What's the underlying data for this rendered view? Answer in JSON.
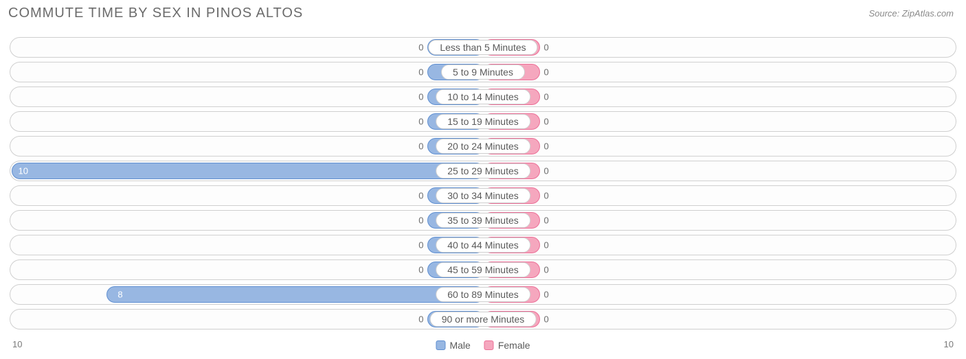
{
  "title": "COMMUTE TIME BY SEX IN PINOS ALTOS",
  "source": "Source: ZipAtlas.com",
  "chart": {
    "type": "diverging-bar",
    "max_value": 10,
    "min_bar_pct": 12,
    "colors": {
      "male_fill": "#98b7e2",
      "male_border": "#5f8fd1",
      "female_fill": "#f5a7be",
      "female_border": "#ec6f97",
      "row_border": "#cfcfcf",
      "row_bg": "#fdfdfd",
      "text": "#6b6b6b",
      "background": "#ffffff"
    },
    "axis_left_label": "10",
    "axis_right_label": "10",
    "legend": [
      {
        "key": "male",
        "label": "Male"
      },
      {
        "key": "female",
        "label": "Female"
      }
    ],
    "categories": [
      {
        "label": "Less than 5 Minutes",
        "male": 0,
        "female": 0
      },
      {
        "label": "5 to 9 Minutes",
        "male": 0,
        "female": 0
      },
      {
        "label": "10 to 14 Minutes",
        "male": 0,
        "female": 0
      },
      {
        "label": "15 to 19 Minutes",
        "male": 0,
        "female": 0
      },
      {
        "label": "20 to 24 Minutes",
        "male": 0,
        "female": 0
      },
      {
        "label": "25 to 29 Minutes",
        "male": 10,
        "female": 0
      },
      {
        "label": "30 to 34 Minutes",
        "male": 0,
        "female": 0
      },
      {
        "label": "35 to 39 Minutes",
        "male": 0,
        "female": 0
      },
      {
        "label": "40 to 44 Minutes",
        "male": 0,
        "female": 0
      },
      {
        "label": "45 to 59 Minutes",
        "male": 0,
        "female": 0
      },
      {
        "label": "60 to 89 Minutes",
        "male": 8,
        "female": 0
      },
      {
        "label": "90 or more Minutes",
        "male": 0,
        "female": 0
      }
    ]
  }
}
